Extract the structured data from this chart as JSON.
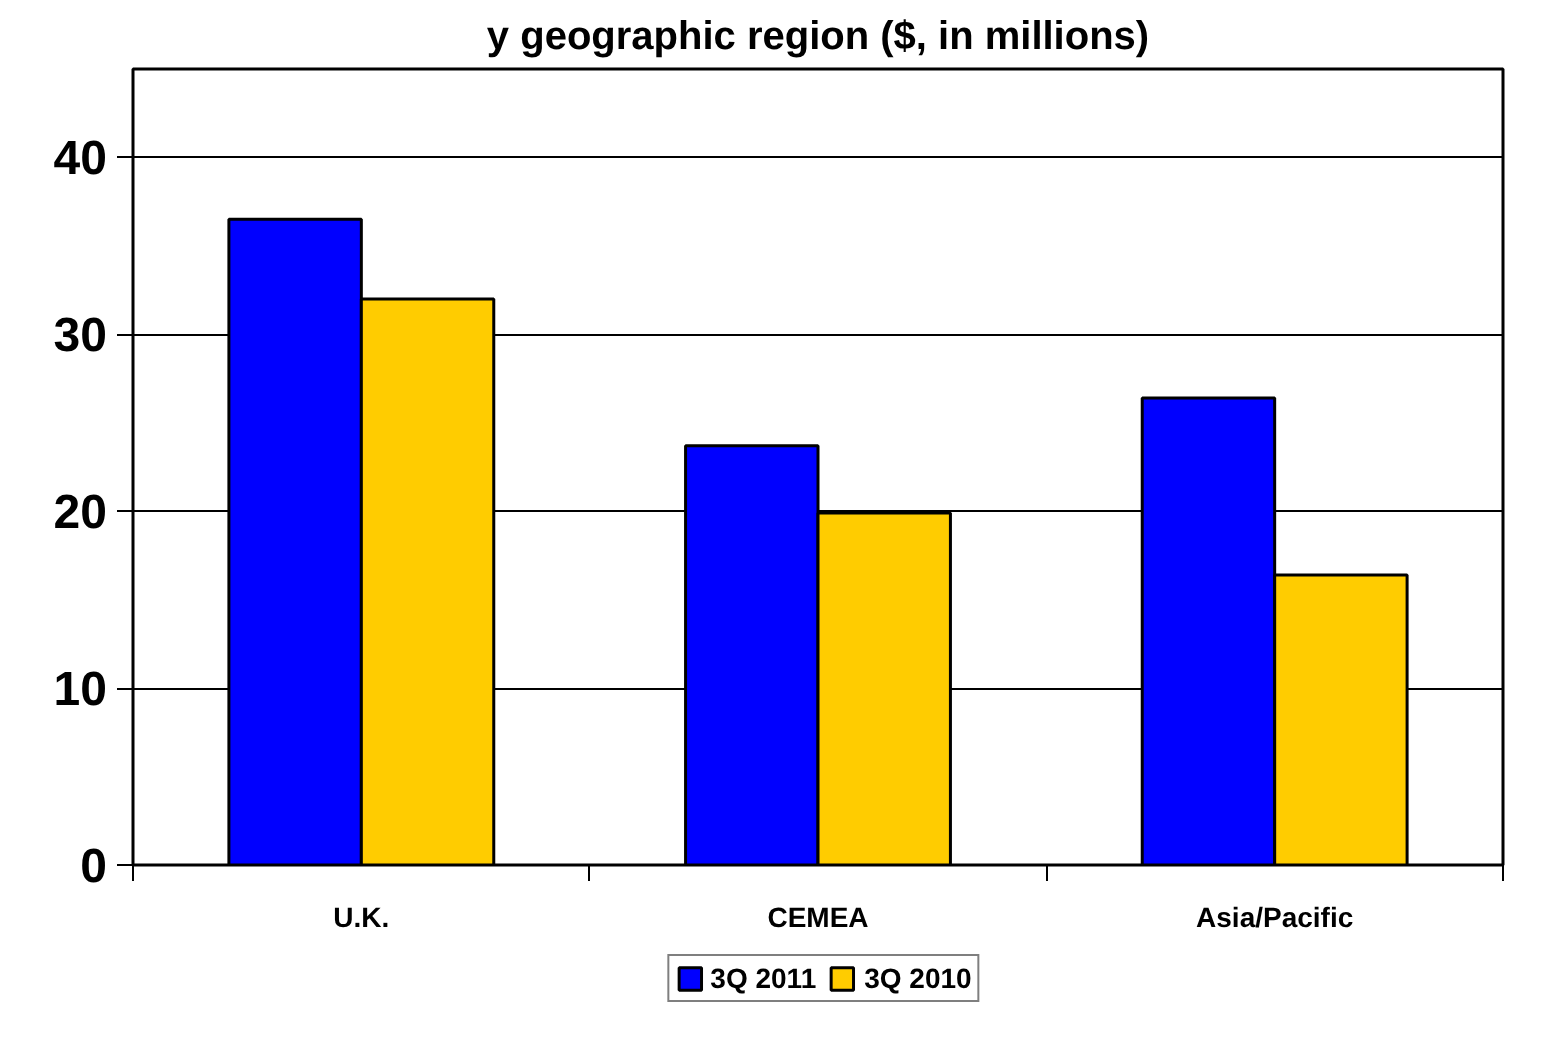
{
  "chart_data": {
    "type": "bar",
    "title": "y geographic region ($, in millions)",
    "categories": [
      "U.K.",
      "CEMEA",
      "Asia/Pacific"
    ],
    "series": [
      {
        "name": "3Q 2011",
        "color": "#0000ff",
        "values": [
          36.5,
          23.7,
          26.4
        ]
      },
      {
        "name": "3Q 2010",
        "color": "#ffcc00",
        "values": [
          32.0,
          19.9,
          16.4
        ]
      }
    ],
    "ylim": [
      0,
      45
    ],
    "yticks": [
      0,
      10,
      20,
      30,
      40
    ],
    "grid": "y",
    "legend": "bottom"
  }
}
